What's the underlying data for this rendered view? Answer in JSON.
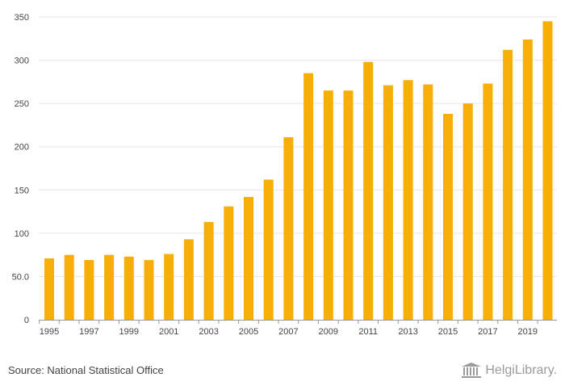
{
  "chart_data": {
    "type": "bar",
    "categories": [
      "1995",
      "1996",
      "1997",
      "1998",
      "1999",
      "2000",
      "2001",
      "2002",
      "2003",
      "2004",
      "2005",
      "2006",
      "2007",
      "2008",
      "2009",
      "2010",
      "2011",
      "2012",
      "2013",
      "2014",
      "2015",
      "2016",
      "2017",
      "2018",
      "2019",
      "2020"
    ],
    "x_tick_labels": [
      "1995",
      "1997",
      "1999",
      "2001",
      "2003",
      "2005",
      "2007",
      "2009",
      "2011",
      "2013",
      "2015",
      "2017",
      "2019"
    ],
    "values": [
      71,
      75,
      69,
      75,
      73,
      69,
      76,
      93,
      113,
      131,
      142,
      162,
      211,
      285,
      265,
      265,
      298,
      271,
      277,
      272,
      238,
      250,
      273,
      312,
      324,
      345
    ],
    "ylim": [
      0,
      350
    ],
    "y_ticks": [
      0,
      50,
      100,
      150,
      200,
      250,
      300,
      350
    ],
    "y_tick_labels": [
      "0",
      "50.0",
      "100",
      "150",
      "200",
      "250",
      "300",
      "350"
    ],
    "title": "",
    "xlabel": "",
    "ylabel": "",
    "grid": true,
    "bar_color": "#F8AE08"
  },
  "footer": {
    "source": "Source: National Statistical Office",
    "brand": "HelgiLibrary."
  }
}
